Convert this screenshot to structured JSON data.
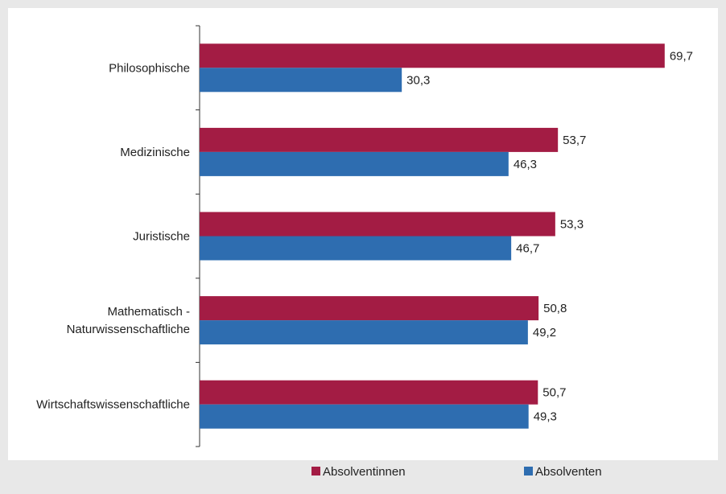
{
  "colors": {
    "background": "#e8e8e8",
    "plot_background": "#ffffff",
    "absolventinnen": "#a31c44",
    "absolventen": "#2e6db0",
    "axis": "#333333",
    "text": "#222222"
  },
  "chart_data": {
    "type": "bar",
    "orientation": "horizontal",
    "title": "",
    "xlabel": "",
    "ylabel": "",
    "categories": [
      [
        "Philosophische"
      ],
      [
        "Medizinische"
      ],
      [
        "Juristische"
      ],
      [
        "Mathematisch -",
        "Naturwissenschaftliche"
      ],
      [
        "Wirtschaftswissenschaftliche"
      ]
    ],
    "series": [
      {
        "name": "Absolventinnen",
        "color": "#a31c44",
        "values": [
          69.7,
          53.7,
          53.3,
          50.8,
          50.7
        ],
        "labels": [
          "69,7",
          "53,7",
          "53,3",
          "50,8",
          "50,7"
        ]
      },
      {
        "name": "Absolventen",
        "color": "#2e6db0",
        "values": [
          30.3,
          46.3,
          46.7,
          49.2,
          49.3
        ],
        "labels": [
          "30,3",
          "46,3",
          "46,7",
          "49,2",
          "49,3"
        ]
      }
    ],
    "xlim": [
      0,
      75
    ],
    "grid": false,
    "legend_position": "bottom"
  }
}
